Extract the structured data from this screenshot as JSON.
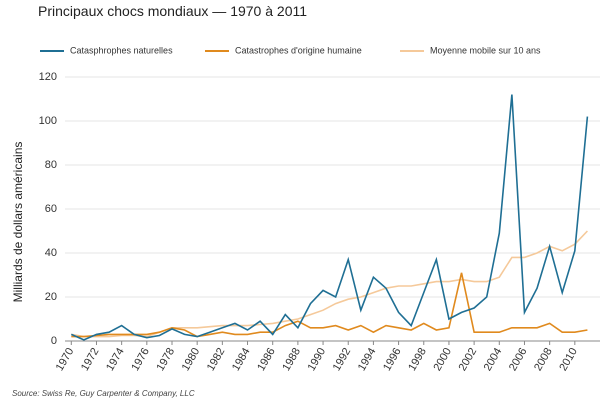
{
  "chart_data": {
    "type": "line",
    "title": "Principaux chocs mondiaux  — 1970 à 2011",
    "y_label": "Milliards de dollars américains",
    "source": "Source: Swiss Re, Guy Carpenter & Company, LLC",
    "x": [
      1970,
      1971,
      1972,
      1973,
      1974,
      1975,
      1976,
      1977,
      1978,
      1979,
      1980,
      1981,
      1982,
      1983,
      1984,
      1985,
      1986,
      1987,
      1988,
      1989,
      1990,
      1991,
      1992,
      1993,
      1994,
      1995,
      1996,
      1997,
      1998,
      1999,
      2000,
      2001,
      2002,
      2003,
      2004,
      2005,
      2006,
      2007,
      2008,
      2009,
      2010,
      2011
    ],
    "series": [
      {
        "name": "Catasphrophes naturelles",
        "color": "#1f6f94",
        "values": [
          3,
          0.5,
          3,
          4,
          7,
          3,
          1.5,
          2.5,
          5.5,
          3,
          2,
          4,
          6,
          8,
          5,
          9,
          3,
          12,
          6,
          17,
          23,
          20,
          37,
          14,
          29,
          24,
          13,
          7,
          22,
          37,
          10,
          13,
          15,
          20,
          49,
          112,
          13,
          24,
          43,
          22,
          41,
          102
        ]
      },
      {
        "name": "Catastrophes d'origine humaine",
        "color": "#e08a1e",
        "values": [
          2,
          2,
          2.5,
          3,
          3,
          3,
          3,
          4,
          6,
          5,
          2,
          3,
          4,
          3,
          3,
          4,
          4,
          7,
          9,
          6,
          6,
          7,
          5,
          7,
          4,
          7,
          6,
          5,
          8,
          5,
          6,
          31,
          4,
          4,
          4,
          6,
          6,
          6,
          8,
          4,
          4,
          5
        ]
      },
      {
        "name": "Moyenne mobile sur 10 ans",
        "color": "#f5c99a",
        "values": [
          3,
          2,
          2,
          2,
          2.5,
          2.5,
          2,
          4,
          6,
          6,
          6,
          6.5,
          7,
          7,
          7,
          7.5,
          8,
          9,
          10,
          12,
          14,
          17,
          19,
          20,
          22,
          24,
          25,
          25,
          26,
          27,
          27,
          28,
          27,
          27,
          29,
          38,
          38,
          40,
          43,
          41,
          44,
          50
        ]
      }
    ],
    "xlim": [
      1969.5,
      2012
    ],
    "xticks": [
      1970,
      1972,
      1974,
      1976,
      1978,
      1980,
      1982,
      1984,
      1986,
      1988,
      1990,
      1992,
      1994,
      1996,
      1998,
      2000,
      2002,
      2004,
      2006,
      2008,
      2010
    ],
    "ylim": [
      0,
      120
    ],
    "yticks": [
      0,
      20,
      40,
      60,
      80,
      100,
      120
    ],
    "grid": true
  }
}
